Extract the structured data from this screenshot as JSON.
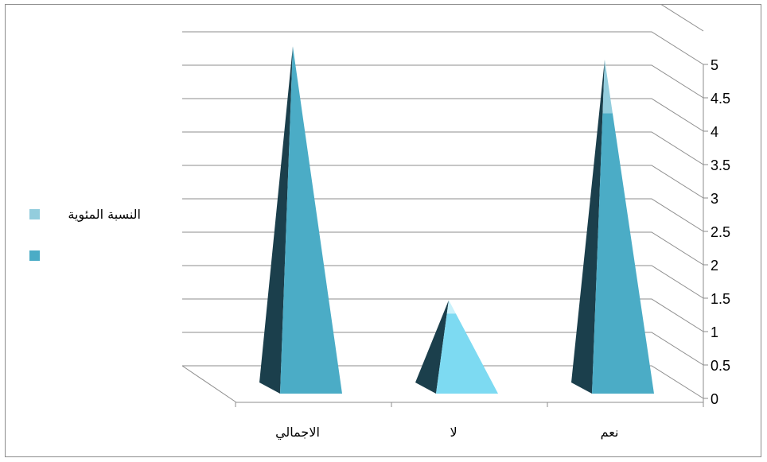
{
  "chart_data": {
    "type": "bar",
    "shape": "3d-pyramid",
    "categories": [
      "نعم",
      "لا",
      "الاجمالي"
    ],
    "series": [
      {
        "name": "",
        "color": "#4bacc6",
        "values": [
          4.2,
          1.2,
          5.2
        ]
      },
      {
        "name": "النسبة المئوية",
        "color": "#93cddd",
        "values": [
          0.8,
          0.2,
          0
        ]
      }
    ],
    "ylim": [
      0,
      5
    ],
    "yticks": [
      "0",
      "0.5",
      "1",
      "1.5",
      "2",
      "2.5",
      "3",
      "3.5",
      "4",
      "4.5",
      "5"
    ],
    "y_axis_position": "right",
    "grid": true,
    "legend_position": "left",
    "title": "",
    "xlabel": "",
    "ylabel": ""
  }
}
